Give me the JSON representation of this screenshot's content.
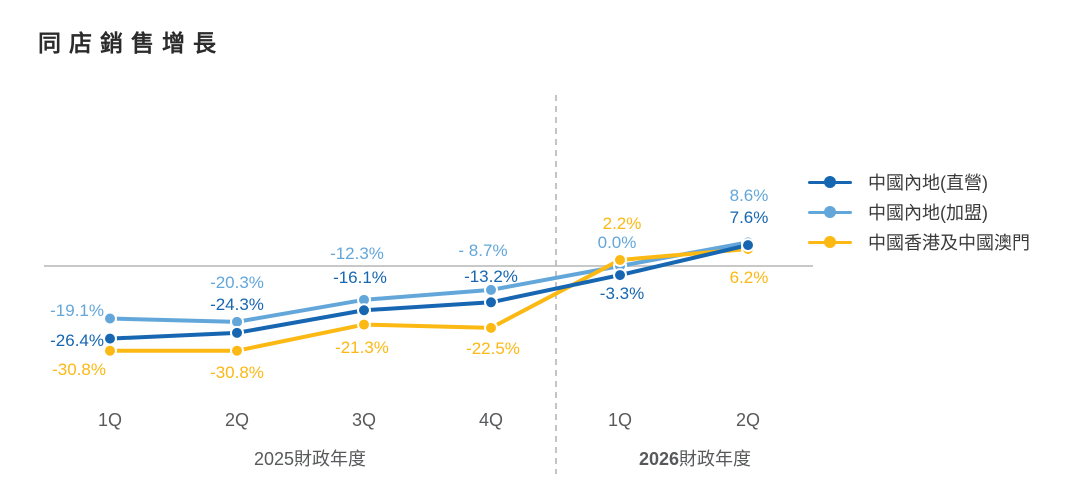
{
  "title": "同店銷售增長",
  "colors": {
    "direct_blue": "#1666b1",
    "franchise_blue": "#63a7da",
    "hkmacau_yellow": "#fcb813",
    "axis_text": "#58595b",
    "zero_line": "#c8c8c8",
    "divider": "#b0b0b0"
  },
  "legend": {
    "items": [
      {
        "label": "中國內地(直營)",
        "color": "#1666b1"
      },
      {
        "label": "中國內地(加盟)",
        "color": "#63a7da"
      },
      {
        "label": "中國香港及中國澳門",
        "color": "#fcb813"
      }
    ]
  },
  "chart_data": {
    "type": "line",
    "title": "同店銷售增長",
    "categories": [
      "1Q",
      "2Q",
      "3Q",
      "4Q",
      "1Q",
      "2Q"
    ],
    "x_groups": [
      {
        "year": "2025",
        "suffix": "財政年度",
        "bold": false
      },
      {
        "year": "2026",
        "suffix": "財政年度",
        "bold": true
      }
    ],
    "series": [
      {
        "name": "中國內地(直營)",
        "color": "#1666b1",
        "values": [
          -26.4,
          -24.3,
          -16.1,
          -13.2,
          -3.3,
          7.6
        ],
        "labels": [
          "-26.4%",
          "-24.3%",
          "-16.1%",
          "-13.2%",
          "-3.3%",
          "7.6%"
        ]
      },
      {
        "name": "中國內地(加盟)",
        "color": "#63a7da",
        "values": [
          -19.1,
          -20.3,
          -12.3,
          -8.7,
          0.0,
          8.6
        ],
        "labels": [
          "-19.1%",
          "-20.3%",
          "-12.3%",
          "- 8.7%",
          "0.0%",
          "8.6%"
        ]
      },
      {
        "name": "中國香港及中國澳門",
        "color": "#fcb813",
        "values": [
          -30.8,
          -30.8,
          -21.3,
          -22.5,
          2.2,
          6.2
        ],
        "labels": [
          "-30.8%",
          "-30.8%",
          "-21.3%",
          "-22.5%",
          "2.2%",
          "6.2%"
        ]
      }
    ],
    "ylim": [
      -35,
      12
    ],
    "zero_line": true,
    "divider_after_category_index": 3,
    "grid": false,
    "legend_position": "right"
  }
}
